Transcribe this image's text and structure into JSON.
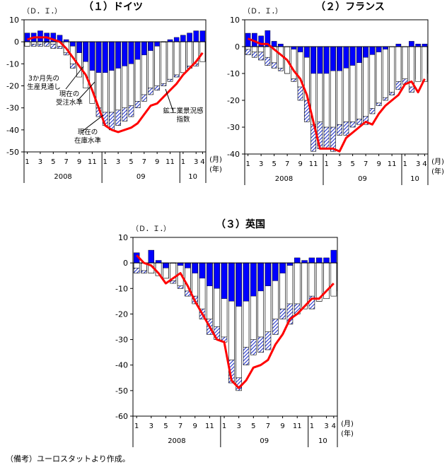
{
  "footnote": "（備考）ユーロスタットより作成。",
  "colors": {
    "production": "#0000ff",
    "orders": "#ffffff",
    "inventory": "#2233cc",
    "index": "#ff0000"
  },
  "chart_data": [
    {
      "type": "bar",
      "title": "（１）ドイツ",
      "yunit": "（Ｄ．Ｉ．）",
      "xunit": [
        "(月)",
        "(年)"
      ],
      "ylim": [
        -50,
        10
      ],
      "yticks": [
        10,
        0,
        -10,
        -20,
        -30,
        -40,
        -50
      ],
      "x_month_labels": [
        "1",
        "3",
        "5",
        "7",
        "9",
        "11",
        "1",
        "3",
        "5",
        "7",
        "9",
        "11",
        "1",
        "3",
        "4"
      ],
      "year_labels": [
        "2008",
        "09",
        "10"
      ],
      "months": [
        "2008-01",
        "2008-02",
        "2008-03",
        "2008-04",
        "2008-05",
        "2008-06",
        "2008-07",
        "2008-08",
        "2008-09",
        "2008-10",
        "2008-11",
        "2008-12",
        "2009-01",
        "2009-02",
        "2009-03",
        "2009-04",
        "2009-05",
        "2009-06",
        "2009-07",
        "2009-08",
        "2009-09",
        "2009-10",
        "2009-11",
        "2009-12",
        "2010-01",
        "2010-02",
        "2010-03",
        "2010-04"
      ],
      "production": [
        4,
        4,
        5,
        4,
        4,
        3,
        1,
        -2,
        -5,
        -9,
        -13,
        -14,
        -14,
        -13,
        -12,
        -11,
        -10,
        -8,
        -6,
        -4,
        -2,
        0,
        1,
        2,
        3,
        4,
        5,
        5
      ],
      "orders": [
        -2,
        -1,
        -1,
        0,
        -1,
        -2,
        -5,
        -10,
        -16,
        -21,
        -28,
        -30,
        -32,
        -32,
        -31,
        -30,
        -29,
        -27,
        -24,
        -21,
        -20,
        -19,
        -17,
        -15,
        -14,
        -11,
        -10,
        -9
      ],
      "inventory": [
        -2,
        -2,
        -2,
        -2,
        -3,
        -3,
        -6,
        -12,
        -15,
        -19,
        -27,
        -34,
        -38,
        -40,
        -38,
        -36,
        -34,
        -30,
        -27,
        -24,
        -22,
        -20,
        -18,
        -16,
        -14,
        -12,
        -11,
        -9
      ],
      "index": [
        1,
        2,
        2,
        2,
        1,
        0,
        -3,
        -7,
        -11,
        -15,
        -22,
        -30,
        -38,
        -40,
        -41,
        -40,
        -39,
        -37,
        -33,
        -29,
        -28,
        -25,
        -22,
        -19,
        -15,
        -12,
        -9,
        -5
      ],
      "annotations": [
        "3か月先の\n生産見通し",
        "現在の\n受注水準",
        "現在の\n在庫水準",
        "鉱工業景況感\n指数"
      ]
    },
    {
      "type": "bar",
      "title": "（２）フランス",
      "yunit": "（Ｄ．Ｉ．）",
      "xunit": [
        "(月)",
        "(年)"
      ],
      "ylim": [
        -40,
        10
      ],
      "yticks": [
        10,
        0,
        -10,
        -20,
        -30,
        -40
      ],
      "x_month_labels": [
        "1",
        "3",
        "5",
        "7",
        "9",
        "11",
        "1",
        "3",
        "5",
        "7",
        "9",
        "11",
        "1",
        "3",
        "4"
      ],
      "year_labels": [
        "2008",
        "09",
        "10"
      ],
      "months": [
        "2008-01",
        "2008-02",
        "2008-03",
        "2008-04",
        "2008-05",
        "2008-06",
        "2008-07",
        "2008-08",
        "2008-09",
        "2008-10",
        "2008-11",
        "2008-12",
        "2009-01",
        "2009-02",
        "2009-03",
        "2009-04",
        "2009-05",
        "2009-06",
        "2009-07",
        "2009-08",
        "2009-09",
        "2009-10",
        "2009-11",
        "2009-12",
        "2010-01",
        "2010-02",
        "2010-03",
        "2010-04"
      ],
      "production": [
        5,
        5,
        4,
        6,
        2,
        1,
        0,
        -1,
        -2,
        -4,
        -10,
        -10,
        -10,
        -9,
        -9,
        -8,
        -7,
        -6,
        -4,
        -3,
        -2,
        -1,
        0,
        1,
        0,
        2,
        1,
        1
      ],
      "orders": [
        -1,
        -2,
        -2,
        -4,
        -6,
        -8,
        -10,
        -12,
        -15,
        -20,
        -29,
        -28,
        -30,
        -30,
        -29,
        -28,
        -28,
        -27,
        -26,
        -23,
        -21,
        -19,
        -17,
        -13,
        -12,
        -15,
        -13,
        -13
      ],
      "inventory": [
        -3,
        -4,
        -5,
        -7,
        -8,
        -9,
        -10,
        -13,
        -20,
        -28,
        -39,
        -38,
        -38,
        -39,
        -33,
        -33,
        -30,
        -29,
        -29,
        -25,
        -22,
        -20,
        -18,
        -16,
        -14,
        -17,
        -12,
        -10
      ],
      "index": [
        3,
        2,
        1,
        1,
        -1,
        -3,
        -5,
        -9,
        -12,
        -18,
        -28,
        -38,
        -38,
        -38,
        -39,
        -34,
        -32,
        -30,
        -28,
        -29,
        -25,
        -22,
        -20,
        -18,
        -14,
        -13,
        -17,
        -12
      ],
      "annotations": []
    },
    {
      "type": "bar",
      "title": "（３）英国",
      "yunit": "（Ｄ．Ｉ．）",
      "xunit": [
        "(月)",
        "(年)"
      ],
      "ylim": [
        -60,
        10
      ],
      "yticks": [
        10,
        0,
        -10,
        -20,
        -30,
        -40,
        -50,
        -60
      ],
      "x_month_labels": [
        "1",
        "3",
        "5",
        "7",
        "9",
        "11",
        "1",
        "3",
        "5",
        "7",
        "9",
        "11",
        "1",
        "3",
        "4"
      ],
      "year_labels": [
        "2008",
        "09",
        "10"
      ],
      "months": [
        "2008-01",
        "2008-02",
        "2008-03",
        "2008-04",
        "2008-05",
        "2008-06",
        "2008-07",
        "2008-08",
        "2008-09",
        "2008-10",
        "2008-11",
        "2008-12",
        "2009-01",
        "2009-02",
        "2009-03",
        "2009-04",
        "2009-05",
        "2009-06",
        "2009-07",
        "2009-08",
        "2009-09",
        "2009-10",
        "2009-11",
        "2009-12",
        "2010-01",
        "2010-02",
        "2010-03",
        "2010-04"
      ],
      "production": [
        4,
        0,
        5,
        1,
        -2,
        0,
        -1,
        -2,
        -4,
        -6,
        -9,
        -10,
        -14,
        -15,
        -17,
        -15,
        -13,
        -11,
        -9,
        -7,
        -4,
        -1,
        2,
        1,
        2,
        2,
        2,
        5
      ],
      "orders": [
        -2,
        -3,
        -4,
        -5,
        -6,
        -7,
        -9,
        -11,
        -13,
        -18,
        -22,
        -25,
        -29,
        -38,
        -45,
        -33,
        -30,
        -29,
        -27,
        -22,
        -18,
        -16,
        -16,
        -18,
        -13,
        -15,
        -14,
        -13
      ],
      "inventory": [
        -4,
        -4,
        -4,
        -5,
        -6,
        -8,
        -10,
        -13,
        -16,
        -22,
        -28,
        -30,
        -31,
        -47,
        -50,
        -40,
        -36,
        -35,
        -34,
        -28,
        -22,
        -24,
        -20,
        -17,
        -18,
        -15,
        -12,
        -11
      ],
      "index": [
        3,
        0,
        -1,
        -4,
        -8,
        -6,
        -4,
        -9,
        -15,
        -20,
        -25,
        -30,
        -31,
        -46,
        -49,
        -46,
        -41,
        -40,
        -38,
        -32,
        -28,
        -22,
        -20,
        -17,
        -14,
        -14,
        -11,
        -8
      ],
      "annotations": []
    }
  ]
}
